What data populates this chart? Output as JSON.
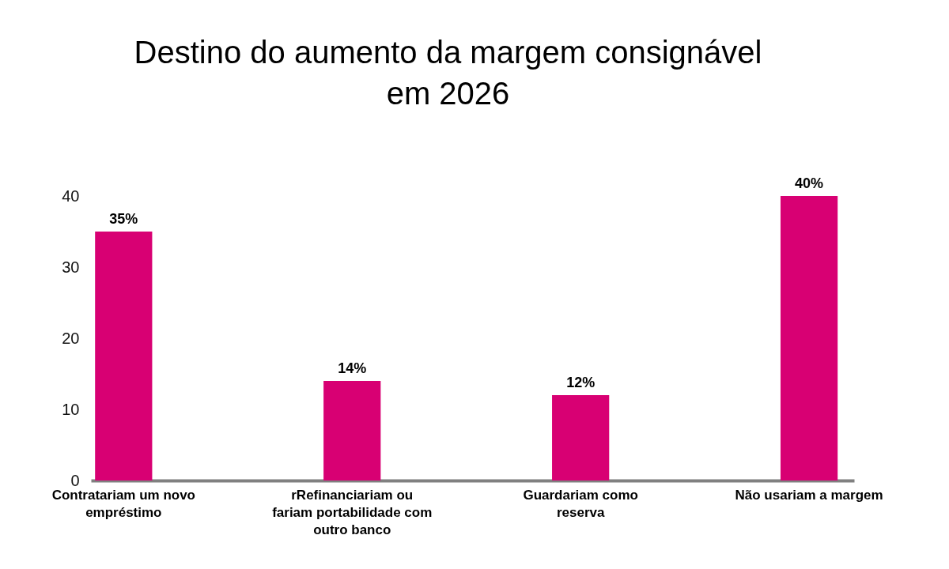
{
  "chart_data": {
    "type": "bar",
    "title": "Destino do aumento da margem consignável em 2026",
    "categories": [
      "Contratariam um novo empréstimo",
      "rRefinanciariam ou fariam portabilidade com outro banco",
      "Guardariam como reserva",
      "Não usariam a margem"
    ],
    "values": [
      35,
      14,
      12,
      40
    ],
    "color": "#d80073",
    "value_labels": [
      "35%",
      "14%",
      "12%",
      "40%"
    ],
    "ylim": [
      0,
      40
    ],
    "yticks": [
      0,
      10,
      20,
      30,
      40
    ],
    "grid": false
  }
}
